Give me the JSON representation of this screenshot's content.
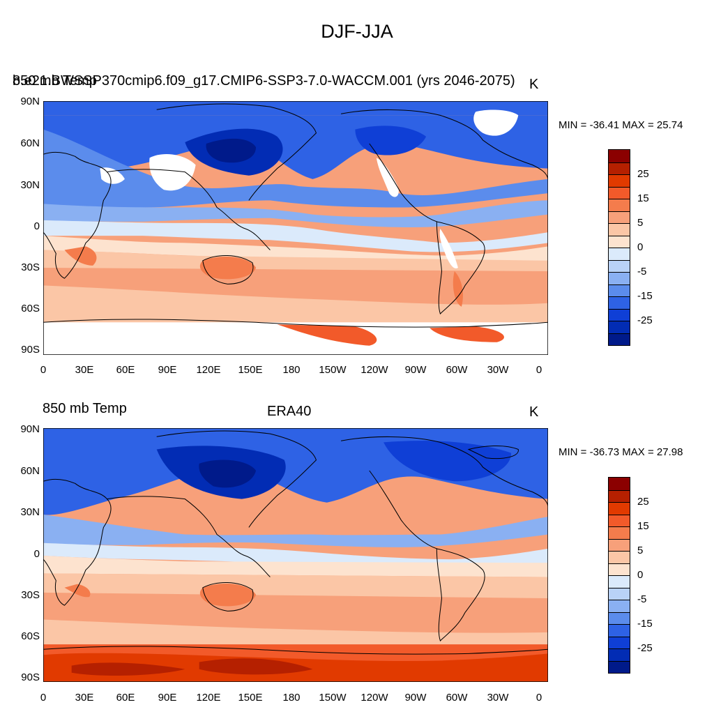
{
  "figure": {
    "title": "DJF-JJA"
  },
  "axes": {
    "lat_labels": [
      "90N",
      "60N",
      "30N",
      "0",
      "30S",
      "60S",
      "90S"
    ],
    "lon_labels": [
      "0",
      "30E",
      "60E",
      "90E",
      "120E",
      "150E",
      "180",
      "150W",
      "120W",
      "90W",
      "60W",
      "30W",
      "0"
    ]
  },
  "colorbar": {
    "labels": [
      "25",
      "15",
      "5",
      "0",
      "-5",
      "-15",
      "-25"
    ],
    "colors": [
      "#8b0000",
      "#b52000",
      "#e13a00",
      "#f25a2a",
      "#f47c4c",
      "#f7a07a",
      "#fbc6a6",
      "#fde3cf",
      "#dbeafb",
      "#b9d2f7",
      "#8ab0f2",
      "#5b8cec",
      "#2e62e5",
      "#0f3fd6",
      "#022cb4",
      "#001a8a"
    ]
  },
  "panels": [
    {
      "id": "model",
      "left_title": "b.e21.BWSSP370cmip6.f09_g17.CMIP6-SSP3-7.0-WACCM.001 (yrs 2046-2075)",
      "left_title_overlap": "850 mb Temp",
      "center_title": "",
      "units": "K",
      "minmax": "MIN = -36.41 MAX =  25.74"
    },
    {
      "id": "obs",
      "left_title": "850 mb Temp",
      "left_title_overlap": "",
      "center_title": "ERA40",
      "units": "K",
      "minmax": "MIN = -36.73 MAX =  27.98"
    }
  ]
}
